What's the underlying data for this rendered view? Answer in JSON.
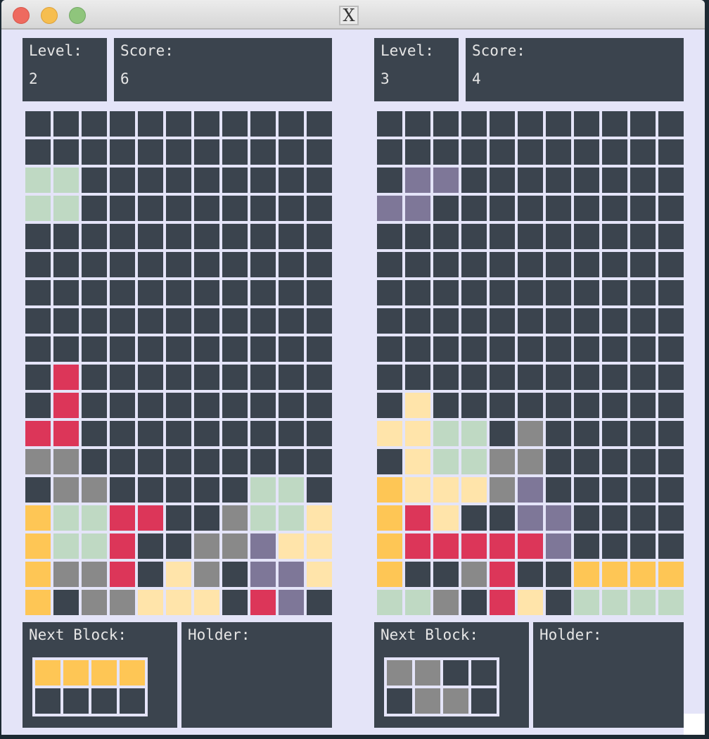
{
  "window": {
    "title_icon": "X",
    "controls": [
      "close",
      "minimize",
      "maximize"
    ]
  },
  "colors": {
    "background": "#e4e4f8",
    "panel": "#3b444e",
    "empty": "#3b444e",
    "G": "#bfd9c3",
    "R": "#dc3659",
    "A": "#898989",
    "O": "#fec655",
    "Y": "#ffe4aa",
    "P": "#7e7798"
  },
  "players": [
    {
      "level_label": "Level:",
      "level": "2",
      "score_label": "Score:",
      "score": "6",
      "next_label": "Next Block:",
      "holder_label": "Holder:",
      "next_block": [
        "OOOO",
        "...."
      ],
      "board": [
        "...........",
        "...........",
        "GG.........",
        "GG.........",
        "...........",
        "...........",
        "...........",
        "...........",
        "...........",
        ".R.........",
        ".R.........",
        "RR.........",
        "AA.........",
        ".AA.....GG.",
        "OGGRR..AGGY",
        "OGGR..AAPYY",
        "OAAR.YA.PPY",
        "O.AAYYY.RP."
      ]
    },
    {
      "level_label": "Level:",
      "level": "3",
      "score_label": "Score:",
      "score": "4",
      "next_label": "Next Block:",
      "holder_label": "Holder:",
      "next_block": [
        "AA..",
        ".AA."
      ],
      "board": [
        "...........",
        "...........",
        ".PP........",
        "PP.........",
        "...........",
        "...........",
        "...........",
        "...........",
        "...........",
        "...........",
        ".Y.........",
        "YYGG.A.....",
        ".YGGAA.....",
        "OYYYAP.....",
        "ORY..PP....",
        "ORRRRRP....",
        "O..AR..OOOO",
        "GGA.RY.GGGG"
      ]
    }
  ]
}
